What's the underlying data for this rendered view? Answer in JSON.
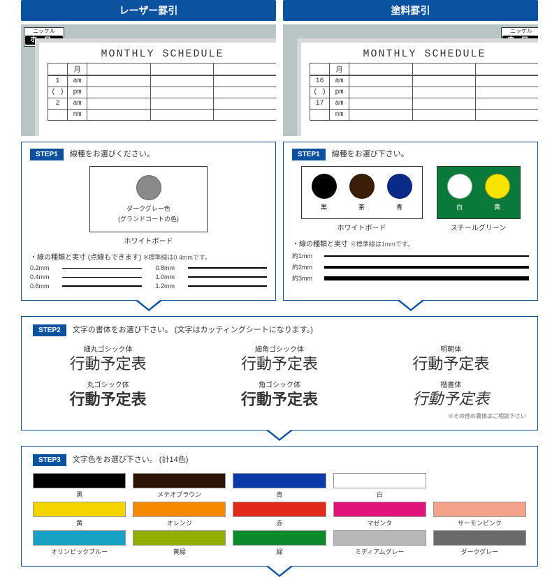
{
  "headers": {
    "left": "レーザー罫引",
    "right": "塗料罫引"
  },
  "badges": {
    "nickel_label_small": "ニッケル",
    "horo": "ホーロー",
    "steel": "スチール"
  },
  "board": {
    "title": "MONTHLY SCHEDULE",
    "month_header": "月",
    "left_rows": [
      [
        "1",
        "am"
      ],
      [
        "( )",
        "pm"
      ],
      [
        "2",
        "am"
      ],
      [
        "",
        "nm"
      ]
    ],
    "right_rows": [
      [
        "16",
        "am"
      ],
      [
        "( )",
        "pm"
      ],
      [
        "17",
        "am"
      ],
      [
        "",
        "nm"
      ]
    ]
  },
  "step1": {
    "label": "STEP1",
    "prompt_left": "線種をお選びください。",
    "prompt_right": "線種をお選び下さい。",
    "left_circle_caption1": "ダークグレー色",
    "left_circle_caption2": "(グランドコートの色)",
    "left_board_label": "ホワイトボード",
    "left_note": "・線の種類と実寸 (点線もできます)",
    "left_note_small": "※標準線は0.4mmです。",
    "left_lines": [
      {
        "lbl": "0.2mm",
        "h": 0.6
      },
      {
        "lbl": "0.4mm",
        "h": 1.0
      },
      {
        "lbl": "0.6mm",
        "h": 1.4
      }
    ],
    "left_lines2": [
      {
        "lbl": "0.8mm",
        "h": 1.8
      },
      {
        "lbl": "1.0mm",
        "h": 2.2
      },
      {
        "lbl": "1.2mm",
        "h": 2.6
      }
    ],
    "right_whiteboard_label": "ホワイトボード",
    "right_green_label": "スチールグリーン",
    "right_circles_wb": [
      {
        "color": "#000000",
        "name": "黒"
      },
      {
        "color": "#3a1e0a",
        "name": "茶"
      },
      {
        "color": "#0a2a8a",
        "name": "青"
      }
    ],
    "right_circles_green": [
      {
        "color": "#ffffff",
        "name": "白"
      },
      {
        "color": "#f5e400",
        "name": "黄"
      }
    ],
    "right_note": "・線の種類と実寸",
    "right_note_small": "※標準線は1mmです。",
    "right_lines": [
      {
        "lbl": "約1mm",
        "h": 2
      },
      {
        "lbl": "約2mm",
        "h": 4
      },
      {
        "lbl": "約3mm",
        "h": 6
      }
    ],
    "grey_circle_color": "#8a8a8a"
  },
  "step2": {
    "label": "STEP2",
    "prompt": "文字の書体をお選び下さい。 (文字はカッティングシートになります。)",
    "sample_text": "行動予定表",
    "fonts": [
      {
        "name": "細丸ゴシック体",
        "cls": ""
      },
      {
        "name": "細角ゴシック体",
        "cls": ""
      },
      {
        "name": "明朝体",
        "cls": "font-serif"
      },
      {
        "name": "丸ゴシック体",
        "cls": "font-bold"
      },
      {
        "name": "角ゴシック体",
        "cls": "font-bold"
      },
      {
        "name": "楷書体",
        "cls": "font-serif font-script"
      }
    ],
    "footnote": "※その他の書体はご相談下さい"
  },
  "step3": {
    "label": "STEP3",
    "prompt": "文字色をお選び下さい。 (計14色)",
    "colors": [
      {
        "hex": "#000000",
        "name": "黒"
      },
      {
        "hex": "#2a1205",
        "name": "メテオブラウン"
      },
      {
        "hex": "#0a3aa8",
        "name": "青"
      },
      {
        "hex": "#ffffff",
        "name": "白"
      },
      {
        "hex": "",
        "name": ""
      },
      {
        "hex": "#f5d400",
        "name": "黄"
      },
      {
        "hex": "#f58a00",
        "name": "オレンジ"
      },
      {
        "hex": "#e02a1a",
        "name": "赤"
      },
      {
        "hex": "#e0147a",
        "name": "マゼンタ"
      },
      {
        "hex": "#f5a28a",
        "name": "サーモンピンク"
      },
      {
        "hex": "#18a0c4",
        "name": "オリンピックブルー"
      },
      {
        "hex": "#8fae00",
        "name": "黄緑"
      },
      {
        "hex": "#0a8a2a",
        "name": "緑"
      },
      {
        "hex": "#b8b8b8",
        "name": "ミディアムグレー"
      },
      {
        "hex": "#6a6a6a",
        "name": "ダークグレー"
      }
    ]
  }
}
